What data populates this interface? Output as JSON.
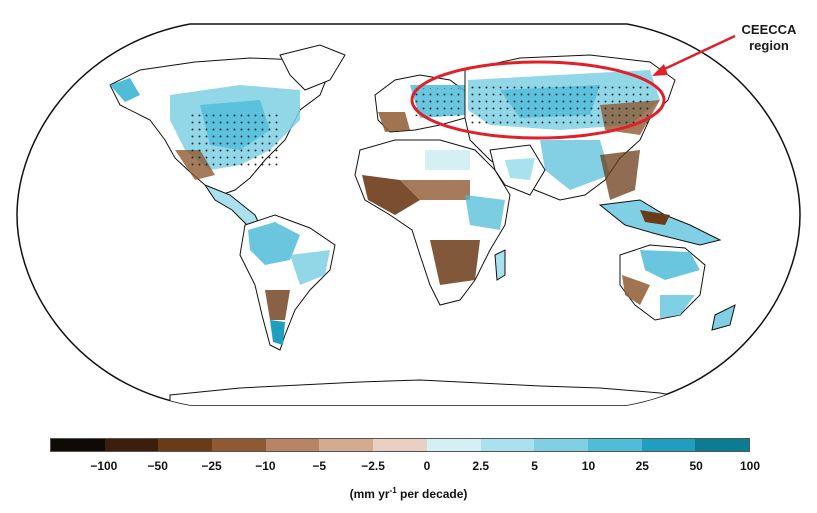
{
  "map": {
    "projection": "Robinson-like world map",
    "colors": {
      "land": "#ffffff",
      "coast": "#111111",
      "annotation": "#e0202a",
      "stipple": "#1c2f3a"
    }
  },
  "annotation": {
    "line1": "CEECCA",
    "line2": "region"
  },
  "legend": {
    "unit_main": "(mm yr",
    "unit_sup": "-1",
    "unit_tail": " per decade)",
    "tick_labels": [
      "−100",
      "−50",
      "−25",
      "−10",
      "−5",
      "−2.5",
      "0",
      "2.5",
      "5",
      "10",
      "25",
      "50",
      "100"
    ],
    "swatch_colors": [
      "#0f0a06",
      "#3b1f0c",
      "#6b3b18",
      "#8f5a32",
      "#b98465",
      "#d3ab91",
      "#ead0c2",
      "#d4f0f5",
      "#a9e1ee",
      "#7fd0e4",
      "#4fbcd8",
      "#1f9fbf",
      "#0a7c93"
    ]
  }
}
